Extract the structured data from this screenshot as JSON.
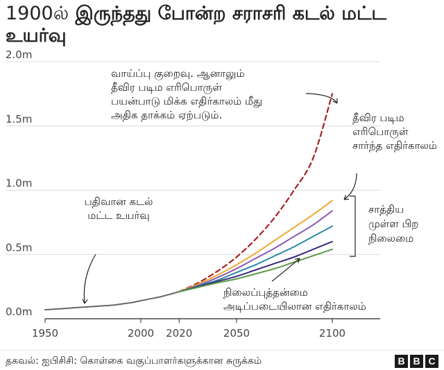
{
  "header": {
    "title_lead": "1900ல்",
    "title_rest": " இருந்தது போன்ற சராசரி கடல் மட்ட உயர்வு"
  },
  "footer": {
    "source": "தகவல்: ஐபிசிசி: கொள்கை வகுப்பாளர்களுக்கான சுருக்கம்",
    "logo_letters": [
      "B",
      "B",
      "C"
    ]
  },
  "chart_data": {
    "type": "line",
    "title": "1900ல் இருந்தது போன்ற சராசரி கடல் மட்ட உயர்வு",
    "xlabel": "",
    "ylabel": "",
    "xlim": [
      1950,
      2125
    ],
    "ylim": [
      0,
      2.0
    ],
    "grid": true,
    "x_ticks": [
      1950,
      2000,
      2020,
      2050,
      2100
    ],
    "x_tick_labels": [
      "1950",
      "2000",
      "2020",
      "2050",
      "2100"
    ],
    "y_ticks": [
      0,
      0.5,
      1.0,
      1.5,
      2.0
    ],
    "y_tick_labels": [
      "0.0m",
      "0.5m",
      "1.0m",
      "1.5m",
      "2.0m"
    ],
    "series": [
      {
        "key": "observed",
        "color": "#666666",
        "dash": false,
        "points": [
          [
            1950,
            0.07
          ],
          [
            1955,
            0.075
          ],
          [
            1960,
            0.08
          ],
          [
            1965,
            0.085
          ],
          [
            1970,
            0.09
          ],
          [
            1975,
            0.095
          ],
          [
            1980,
            0.1
          ],
          [
            1985,
            0.105
          ],
          [
            1990,
            0.115
          ],
          [
            1995,
            0.125
          ],
          [
            2000,
            0.14
          ],
          [
            2005,
            0.155
          ],
          [
            2010,
            0.17
          ],
          [
            2015,
            0.19
          ],
          [
            2020,
            0.21
          ]
        ]
      },
      {
        "key": "very-high-worst",
        "color": "#a52020",
        "dash": true,
        "points": [
          [
            2020,
            0.21
          ],
          [
            2030,
            0.28
          ],
          [
            2040,
            0.37
          ],
          [
            2050,
            0.48
          ],
          [
            2060,
            0.62
          ],
          [
            2070,
            0.79
          ],
          [
            2080,
            1.0
          ],
          [
            2090,
            1.25
          ],
          [
            2100,
            1.75
          ]
        ]
      },
      {
        "key": "very-high",
        "color": "#f0a830",
        "dash": false,
        "points": [
          [
            2020,
            0.21
          ],
          [
            2030,
            0.27
          ],
          [
            2040,
            0.34
          ],
          [
            2050,
            0.42
          ],
          [
            2060,
            0.51
          ],
          [
            2070,
            0.61
          ],
          [
            2080,
            0.71
          ],
          [
            2090,
            0.81
          ],
          [
            2100,
            0.92
          ]
        ]
      },
      {
        "key": "scenario-purple",
        "color": "#8a5ab0",
        "dash": false,
        "points": [
          [
            2020,
            0.21
          ],
          [
            2030,
            0.26
          ],
          [
            2040,
            0.32
          ],
          [
            2050,
            0.39
          ],
          [
            2060,
            0.47
          ],
          [
            2070,
            0.55
          ],
          [
            2080,
            0.64
          ],
          [
            2090,
            0.73
          ],
          [
            2100,
            0.84
          ]
        ]
      },
      {
        "key": "scenario-teal",
        "color": "#2a8aa8",
        "dash": false,
        "points": [
          [
            2020,
            0.21
          ],
          [
            2030,
            0.255
          ],
          [
            2040,
            0.3
          ],
          [
            2050,
            0.36
          ],
          [
            2060,
            0.42
          ],
          [
            2070,
            0.49
          ],
          [
            2080,
            0.56
          ],
          [
            2090,
            0.64
          ],
          [
            2100,
            0.72
          ]
        ]
      },
      {
        "key": "scenario-navy",
        "color": "#3a2a7a",
        "dash": false,
        "points": [
          [
            2020,
            0.21
          ],
          [
            2030,
            0.25
          ],
          [
            2040,
            0.29
          ],
          [
            2050,
            0.33
          ],
          [
            2060,
            0.38
          ],
          [
            2070,
            0.43
          ],
          [
            2080,
            0.48
          ],
          [
            2090,
            0.54
          ],
          [
            2100,
            0.6
          ]
        ]
      },
      {
        "key": "sustainable",
        "color": "#5a9a4a",
        "dash": false,
        "points": [
          [
            2020,
            0.21
          ],
          [
            2030,
            0.245
          ],
          [
            2040,
            0.28
          ],
          [
            2050,
            0.31
          ],
          [
            2060,
            0.35
          ],
          [
            2070,
            0.39
          ],
          [
            2080,
            0.44
          ],
          [
            2090,
            0.49
          ],
          [
            2100,
            0.54
          ]
        ]
      }
    ],
    "annotations": {
      "observed": "பதிவான கடல் மட்ட உயர்வு",
      "worst_case": "வாய்ப்பு குறைவு. ஆனாலும் தீவிர படிம எரிபொருள் பயன்பாடு மிக்க எதிர்காலம் மீது அதிக தாக்கம் ஏற்படும்.",
      "high_fossil": "தீவிர படிம எரிபொருள் சார்ந்த எதிர்காலம்",
      "other_scenarios": "சாத்திய முள்ள பிற நிலைமை",
      "sustainable": "நிலைப்புத்தன்மை அடிப்படையிலான எதிர்காலம்"
    }
  }
}
